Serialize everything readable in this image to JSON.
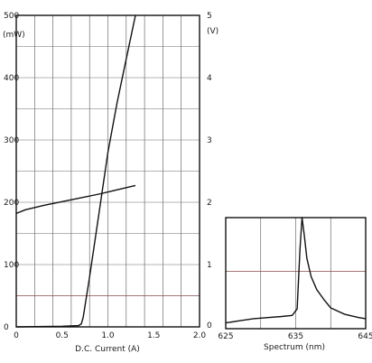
{
  "chart_data": [
    {
      "type": "line",
      "xlabel": "D.C. Current (A)",
      "ylabel_left_unit": "(mW)",
      "ylabel_right_unit": "(V)",
      "xlim": [
        0,
        2.0
      ],
      "ylim_left": [
        0,
        500
      ],
      "ylim_right": [
        0,
        5
      ],
      "x_ticks": [
        "0",
        "0.5",
        "1.0",
        "1.5",
        "2.0"
      ],
      "y_left_ticks": [
        "0",
        "100",
        "200",
        "300",
        "400",
        "500"
      ],
      "y_right_ticks": [
        "0",
        "1",
        "2",
        "3",
        "4",
        "5"
      ],
      "grid": true,
      "series": [
        {
          "axis": "left",
          "x": [
            0,
            0.5,
            0.68,
            0.71,
            0.73,
            0.8,
            0.9,
            1.0,
            1.1,
            1.2,
            1.3
          ],
          "y": [
            0,
            1,
            2,
            5,
            15,
            80,
            180,
            280,
            360,
            430,
            500
          ]
        },
        {
          "axis": "right",
          "x": [
            0,
            0.1,
            0.3,
            0.5,
            0.7,
            0.9,
            1.1,
            1.3
          ],
          "y": [
            1.82,
            1.88,
            1.95,
            2.01,
            2.07,
            2.13,
            2.2,
            2.27
          ]
        }
      ]
    },
    {
      "type": "line",
      "xlabel": "Spectrum (nm)",
      "xlim": [
        625,
        645
      ],
      "ylim": [
        0,
        1
      ],
      "x_ticks": [
        "625",
        "635",
        "645"
      ],
      "grid": true,
      "series": [
        {
          "x": [
            625,
            627,
            629,
            631,
            633,
            634.5,
            635.2,
            635.6,
            635.9,
            636.2,
            636.6,
            637.2,
            638,
            639,
            640,
            642,
            644,
            645
          ],
          "y": [
            0.02,
            0.04,
            0.06,
            0.07,
            0.08,
            0.09,
            0.15,
            0.7,
            1.0,
            0.85,
            0.62,
            0.45,
            0.33,
            0.24,
            0.16,
            0.1,
            0.07,
            0.06
          ]
        }
      ]
    }
  ],
  "colors": {
    "ink": "#111111",
    "grid": "#6b6b6b",
    "accent_grid": "#8a4a4a"
  }
}
